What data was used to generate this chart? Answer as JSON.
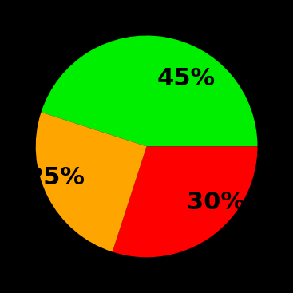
{
  "slices": [
    45,
    30,
    25
  ],
  "colors": [
    "#00ee00",
    "#ff0000",
    "#ffa500"
  ],
  "labels": [
    "45%",
    "30%",
    "25%"
  ],
  "background_color": "#000000",
  "label_fontsize": 22,
  "label_color": "#000000",
  "label_fontweight": "bold",
  "startangle": 162,
  "labeldistance": 0.62
}
